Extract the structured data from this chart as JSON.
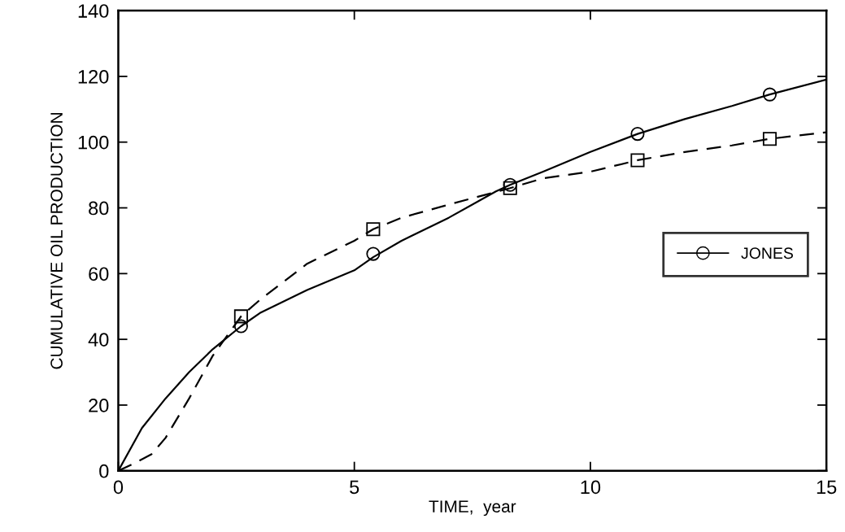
{
  "chart_data": {
    "type": "line",
    "xlabel": "TIME,  year",
    "ylabel": "CUMULATIVE OIL PRODUCTION",
    "xlim": [
      0,
      15
    ],
    "ylim": [
      0,
      140
    ],
    "xticks": [
      0,
      5,
      10,
      15
    ],
    "yticks": [
      0,
      20,
      40,
      60,
      80,
      100,
      120,
      140
    ],
    "grid": false,
    "legend": "right",
    "series": [
      {
        "name": "JONES",
        "color": "#000000",
        "line_style": "solid",
        "x": [
          0,
          0.5,
          1,
          1.5,
          2,
          2.6,
          3,
          4,
          5,
          5.4,
          6,
          7,
          8,
          8.3,
          9,
          10,
          11,
          12,
          13,
          13.8,
          15
        ],
        "values": [
          0,
          13,
          22,
          30,
          37,
          44,
          48,
          55,
          61,
          65,
          70,
          77,
          85,
          87,
          91,
          97,
          102.5,
          107,
          111,
          114.5,
          119
        ]
      },
      {
        "color": "#000000",
        "line_style": "dashed",
        "x": [
          0,
          0.3,
          0.7,
          1,
          1.5,
          2,
          2.6,
          3,
          4,
          5,
          5.4,
          6,
          7,
          8.3,
          9,
          10,
          11,
          12,
          13,
          13.8,
          15
        ],
        "values": [
          0,
          2,
          5,
          10,
          22,
          35,
          47,
          52,
          63,
          70,
          73.5,
          77,
          81,
          86,
          89,
          91,
          94.5,
          97,
          99,
          101,
          103
        ]
      },
      {
        "type": "scatter",
        "color": "#000000",
        "marker": "circle",
        "x": [
          2.6,
          5.4,
          8.3,
          11,
          13.8
        ],
        "values": [
          44,
          66,
          87,
          102.5,
          114.5
        ]
      },
      {
        "type": "scatter",
        "color": "#000000",
        "marker": "square",
        "x": [
          2.6,
          5.4,
          8.3,
          11,
          13.8
        ],
        "values": [
          47,
          73.5,
          86,
          94.5,
          101
        ]
      }
    ]
  }
}
